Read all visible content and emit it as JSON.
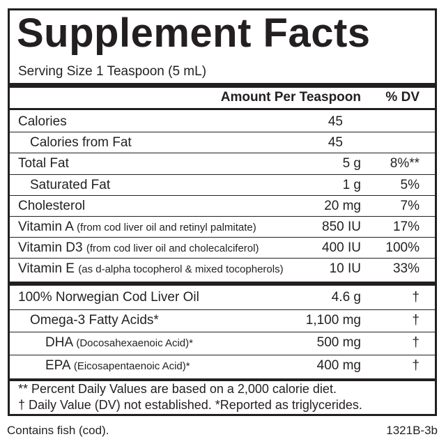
{
  "title": "Supplement Facts",
  "serving_size": "Serving Size 1 Teaspoon (5 mL)",
  "header": {
    "amount": "Amount Per Teaspoon",
    "dv": "% DV"
  },
  "section1": [
    {
      "name": "Calories",
      "note": "",
      "amount": "45",
      "dv": "",
      "indent": 0,
      "unitless": true
    },
    {
      "name": "Calories from Fat",
      "note": "",
      "amount": "45",
      "dv": "",
      "indent": 1,
      "unitless": true
    },
    {
      "name": "Total Fat",
      "note": "",
      "amount": "5 g",
      "dv": "8%**",
      "indent": 0,
      "unitless": false
    },
    {
      "name": "Saturated Fat",
      "note": "",
      "amount": "1 g",
      "dv": "5%",
      "indent": 1,
      "unitless": false
    },
    {
      "name": "Cholesterol",
      "note": "",
      "amount": "20 mg",
      "dv": "7%",
      "indent": 0,
      "unitless": false
    },
    {
      "name": "Vitamin A ",
      "note": "(from cod liver oil and retinyl palmitate)",
      "amount": "850 IU",
      "dv": "17%",
      "indent": 0,
      "unitless": false
    },
    {
      "name": "Vitamin D3 ",
      "note": "(from cod liver oil and cholecalciferol)",
      "amount": "400 IU",
      "dv": "100%",
      "indent": 0,
      "unitless": false
    },
    {
      "name": "Vitamin E ",
      "note": "(as d-alpha tocopherol & mixed tocopherols)",
      "amount": "10 IU",
      "dv": "33%",
      "indent": 0,
      "unitless": false
    }
  ],
  "section2": [
    {
      "name": "100% Norwegian Cod Liver Oil",
      "note": "",
      "amount": "4.6 g",
      "dv": "†",
      "indent": 0
    },
    {
      "name": "Omega-3 Fatty Acids*",
      "note": "",
      "amount": "1,100 mg",
      "dv": "†",
      "indent": 1
    },
    {
      "name": "DHA ",
      "note": "(Docosahexaenoic Acid)*",
      "amount": "500 mg",
      "dv": "†",
      "indent": 2
    },
    {
      "name": "EPA ",
      "note": "(Eicosapentaenoic Acid)*",
      "amount": "400 mg",
      "dv": "†",
      "indent": 2
    }
  ],
  "footnotes": [
    "** Percent Daily Values are based on a 2,000 calorie diet.",
    "† Daily Value (DV) not established. *Reported as triglycerides."
  ],
  "allergen": "Contains fish (cod).",
  "code": "1321B-3b"
}
